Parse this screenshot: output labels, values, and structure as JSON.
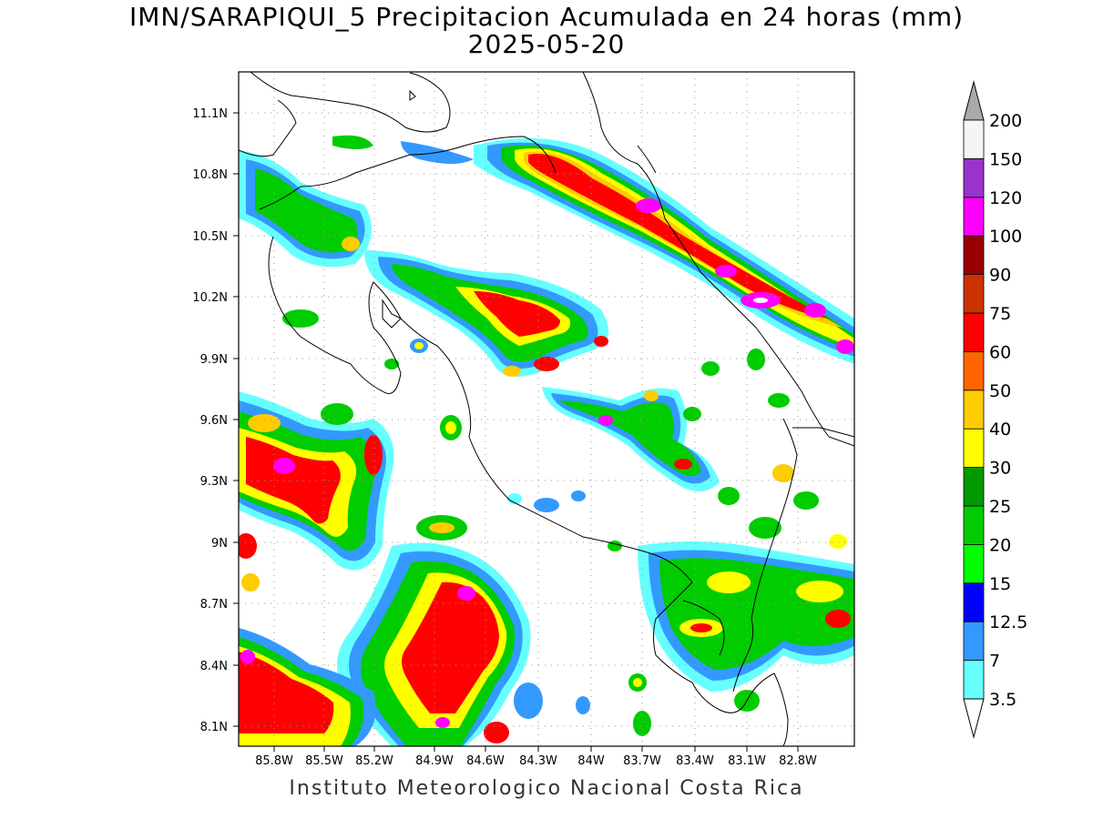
{
  "title": {
    "line1": "IMN/SARAPIQUI_5 Precipitacion Acumulada en 24 horas (mm)",
    "line2": "2025-05-20"
  },
  "footer": "Instituto Meteorologico Nacional Costa Rica",
  "axes": {
    "lat_ticks": [
      "11.1N",
      "10.8N",
      "10.5N",
      "10.2N",
      "9.9N",
      "9.6N",
      "9.3N",
      "9N",
      "8.7N",
      "8.4N",
      "8.1N"
    ],
    "lon_ticks": [
      "85.8W",
      "85.5W",
      "85.2W",
      "84.9W",
      "84.6W",
      "84.3W",
      "84W",
      "83.7W",
      "83.4W",
      "83.1W",
      "82.8W"
    ],
    "lat_range": [
      8.0,
      11.3
    ],
    "lon_range": [
      -85.95,
      -82.95
    ]
  },
  "colorbar": {
    "labels": [
      "3.5",
      "7",
      "12.5",
      "15",
      "20",
      "25",
      "30",
      "40",
      "50",
      "60",
      "75",
      "90",
      "100",
      "120",
      "150",
      "200"
    ],
    "colors": [
      "#66ffff",
      "#3399ff",
      "#0000ff",
      "#00ff00",
      "#00cc00",
      "#009900",
      "#ffff00",
      "#ffcc00",
      "#ff6600",
      "#ff0000",
      "#cc3300",
      "#990000",
      "#ff00ff",
      "#9933cc",
      "#f5f5f5",
      "#aaaaaa"
    ],
    "under_color": "#ffffff",
    "over_color": "#aaaaaa"
  }
}
